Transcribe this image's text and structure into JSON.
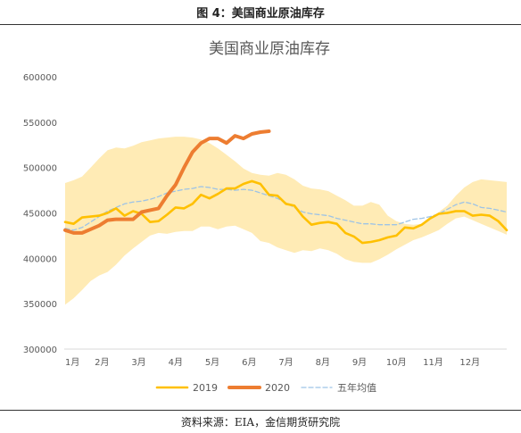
{
  "figure": {
    "caption": "图 4：美国商业原油库存",
    "source": "资料来源：EIA，金信期货研究院"
  },
  "chart_data": {
    "type": "line",
    "title": "美国商业原油库存",
    "xlabel": "",
    "ylabel": "",
    "ylim": [
      300000,
      600000
    ],
    "yticks": [
      "300000",
      "350000",
      "400000",
      "450000",
      "500000",
      "550000",
      "600000"
    ],
    "ytick_values": [
      300000,
      350000,
      400000,
      450000,
      500000,
      550000,
      600000
    ],
    "xticks": [
      "1月",
      "2月",
      "3月",
      "4月",
      "5月",
      "6月",
      "7月",
      "8月",
      "9月",
      "10月",
      "11月",
      "12月"
    ],
    "week_range": [
      1,
      53
    ],
    "grid": false,
    "legend": "bottom",
    "band": {
      "color": "#FFEBB5",
      "upper": [
        483000,
        486000,
        490000,
        500000,
        510000,
        519000,
        522000,
        521000,
        524000,
        528000,
        530000,
        532000,
        533000,
        534000,
        534000,
        533000,
        531000,
        527000,
        521000,
        514000,
        507000,
        499000,
        494000,
        492000,
        491000,
        494000,
        492000,
        487000,
        480000,
        477000,
        476000,
        474000,
        469000,
        464000,
        458000,
        458000,
        462000,
        459000,
        447000,
        441000,
        438000,
        437000,
        438000,
        443000,
        451000,
        458000,
        469000,
        478000,
        484000,
        487000,
        486000,
        485000,
        484000
      ],
      "lower": [
        349000,
        356000,
        365000,
        375000,
        381000,
        385000,
        393000,
        403000,
        411000,
        418000,
        425000,
        428000,
        427000,
        429000,
        430000,
        430000,
        435000,
        435000,
        432000,
        435000,
        436000,
        432000,
        428000,
        419000,
        417000,
        412000,
        409000,
        406000,
        409000,
        408000,
        411000,
        409000,
        405000,
        399000,
        396000,
        395000,
        395000,
        399000,
        404000,
        410000,
        415000,
        420000,
        423000,
        427000,
        431000,
        438000,
        444000,
        446000,
        442000,
        438000,
        434000,
        430000,
        426000
      ]
    },
    "series": [
      {
        "name": "2019",
        "color": "#FFC000",
        "dash": false,
        "values": [
          440000,
          438000,
          445000,
          446000,
          447000,
          450000,
          455000,
          447000,
          452000,
          449000,
          440000,
          441000,
          448000,
          456000,
          455000,
          460000,
          470000,
          466000,
          471000,
          477000,
          477000,
          482000,
          485000,
          482000,
          470000,
          469000,
          460000,
          458000,
          446000,
          437000,
          439000,
          440000,
          438000,
          428000,
          424000,
          417000,
          418000,
          420000,
          423000,
          425000,
          434000,
          433000,
          437000,
          444000,
          449000,
          450000,
          452000,
          452000,
          447000,
          448000,
          447000,
          441000,
          431000
        ]
      },
      {
        "name": "2020",
        "color": "#ED7D31",
        "dash": false,
        "values": [
          431000,
          428000,
          428000,
          432000,
          436000,
          442000,
          443000,
          443000,
          443000,
          451000,
          453000,
          455000,
          469000,
          481000,
          500000,
          517000,
          527000,
          532000,
          532000,
          527000,
          535000,
          532000,
          537000,
          539000,
          540000
        ]
      },
      {
        "name": "五年均值",
        "color": "#9DC3E6",
        "dash": true,
        "values": [
          433000,
          431000,
          434000,
          440000,
          446000,
          452000,
          456000,
          460000,
          462000,
          463000,
          465000,
          468000,
          472000,
          474000,
          476000,
          477000,
          479000,
          478000,
          476000,
          476000,
          475000,
          476000,
          475000,
          472000,
          469000,
          466000,
          461000,
          456000,
          451000,
          449000,
          448000,
          447000,
          444000,
          442000,
          440000,
          438000,
          438000,
          437000,
          437000,
          437000,
          440000,
          443000,
          444000,
          446000,
          449000,
          454000,
          459000,
          462000,
          460000,
          456000,
          455000,
          453000,
          451000
        ]
      }
    ]
  }
}
